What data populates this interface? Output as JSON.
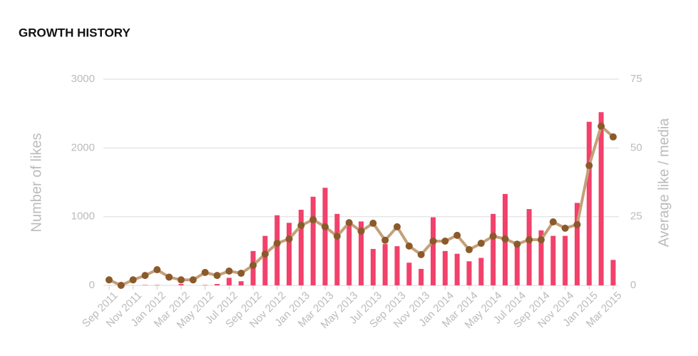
{
  "chart_data": {
    "type": "bar_line",
    "title": "GROWTH HISTORY",
    "y_label": "Number of likes",
    "y2_label": "Average like / media",
    "categories": [
      "Sep 2011",
      null,
      "Nov 2011",
      null,
      "Jan 2012",
      null,
      "Mar 2012",
      null,
      "May 2012",
      null,
      "Jul 2012",
      null,
      "Sep 2012",
      null,
      "Nov 2012",
      null,
      "Jan 2013",
      null,
      "Mar 2013",
      null,
      "May 2013",
      null,
      "Jul 2013",
      null,
      "Sep 2013",
      null,
      "Nov 2013",
      null,
      "Jan 2014",
      null,
      "Mar 2014",
      null,
      "May 2014",
      null,
      "Jul 2014",
      null,
      "Sep 2014",
      null,
      "Nov 2014",
      null,
      "Jan 2015",
      null,
      "Mar 2015"
    ],
    "series": [
      {
        "name": "Number of likes",
        "color": "#f2416b",
        "values": [
          0,
          0,
          0,
          5,
          5,
          0,
          20,
          0,
          5,
          20,
          110,
          60,
          500,
          720,
          1020,
          910,
          1100,
          1290,
          1420,
          1040,
          870,
          930,
          530,
          600,
          570,
          330,
          240,
          990,
          500,
          460,
          350,
          400,
          1040,
          1330,
          620,
          1110,
          800,
          720,
          720,
          1200,
          2380,
          2520,
          370
        ]
      },
      {
        "name": "Average like / media",
        "color": "#c4a07a",
        "marker_color": "#8b5a2b",
        "axis": "y2",
        "values": [
          2,
          0,
          2,
          3.6,
          5.7,
          3,
          2,
          2,
          4.7,
          3.6,
          5.2,
          4.4,
          7.3,
          11.4,
          15.3,
          16.9,
          21.8,
          23.9,
          21.3,
          17.9,
          22.8,
          19.7,
          22.6,
          16.4,
          21.3,
          14.3,
          11.2,
          16.1,
          16.1,
          18.2,
          13,
          15.3,
          17.9,
          16.9,
          15,
          16.6,
          16.6,
          23.1,
          20.8,
          22.1,
          43.6,
          57.9,
          54
        ]
      }
    ],
    "ylim": [
      0,
      3000
    ],
    "yticks": [
      0,
      1000,
      2000,
      3000
    ],
    "y2lim": [
      0,
      75
    ],
    "y2ticks": [
      0,
      25,
      50,
      75
    ],
    "grid": true
  }
}
